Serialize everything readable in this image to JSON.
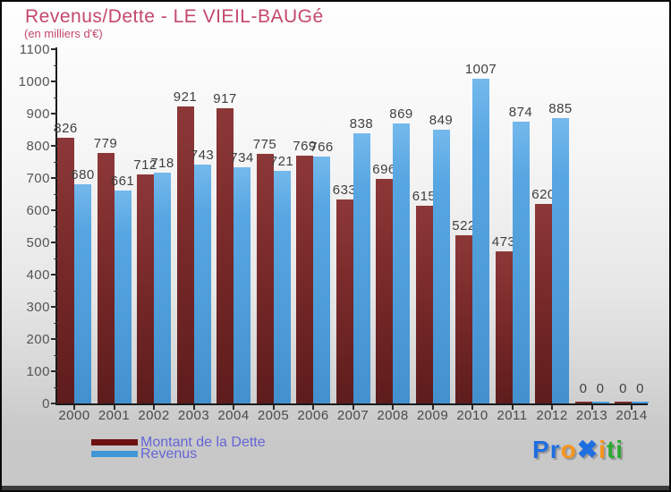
{
  "header": {
    "title": "Revenus/Dette - LE VIEIL-BAUGé",
    "subtitle": "(en milliers d'€)"
  },
  "chart_data": {
    "type": "bar",
    "title": "Revenus/Dette - LE VIEIL-BAUGé",
    "subtitle": "(en milliers d'€)",
    "categories": [
      "2000",
      "2001",
      "2002",
      "2003",
      "2004",
      "2005",
      "2006",
      "2007",
      "2008",
      "2009",
      "2010",
      "2011",
      "2012",
      "2013",
      "2014"
    ],
    "series": [
      {
        "name": "Montant de la Dette",
        "color": "#7a2a2a",
        "legend_color": "#6e1111",
        "values": [
          826,
          779,
          712,
          921,
          917,
          775,
          769,
          633,
          696,
          615,
          522,
          473,
          620,
          0,
          0
        ]
      },
      {
        "name": "Revenus",
        "color": "#4a9dd8",
        "legend_color": "#4197d6",
        "values": [
          680,
          661,
          718,
          743,
          734,
          721,
          766,
          838,
          869,
          849,
          1007,
          874,
          885,
          0,
          0
        ]
      }
    ],
    "ylim": [
      0,
      1100
    ],
    "ytick_step": 100,
    "yminor_step": 50,
    "grid": false,
    "legend_position": "bottom-left",
    "value_labels": true,
    "xlabel": "",
    "ylabel": ""
  },
  "colors": {
    "title_accent": "#c4486b",
    "debt_bar": "#7a2a2a",
    "revenue_bar": "#4a9dd8",
    "legend_text": "#6565d6",
    "axis_text": "#555555"
  },
  "logo": {
    "name": "Proxiti",
    "letters": [
      {
        "ch": "P",
        "color": "#1e6fe0"
      },
      {
        "ch": "r",
        "color": "#1e6fe0"
      },
      {
        "ch": "o",
        "color": "#f7941d"
      },
      {
        "ch": "✖",
        "color": "#1e6fe0"
      },
      {
        "ch": "i",
        "color": "#f7941d"
      },
      {
        "ch": "t",
        "color": "#2ca832"
      },
      {
        "ch": "i",
        "color": "#2ca832"
      }
    ]
  }
}
